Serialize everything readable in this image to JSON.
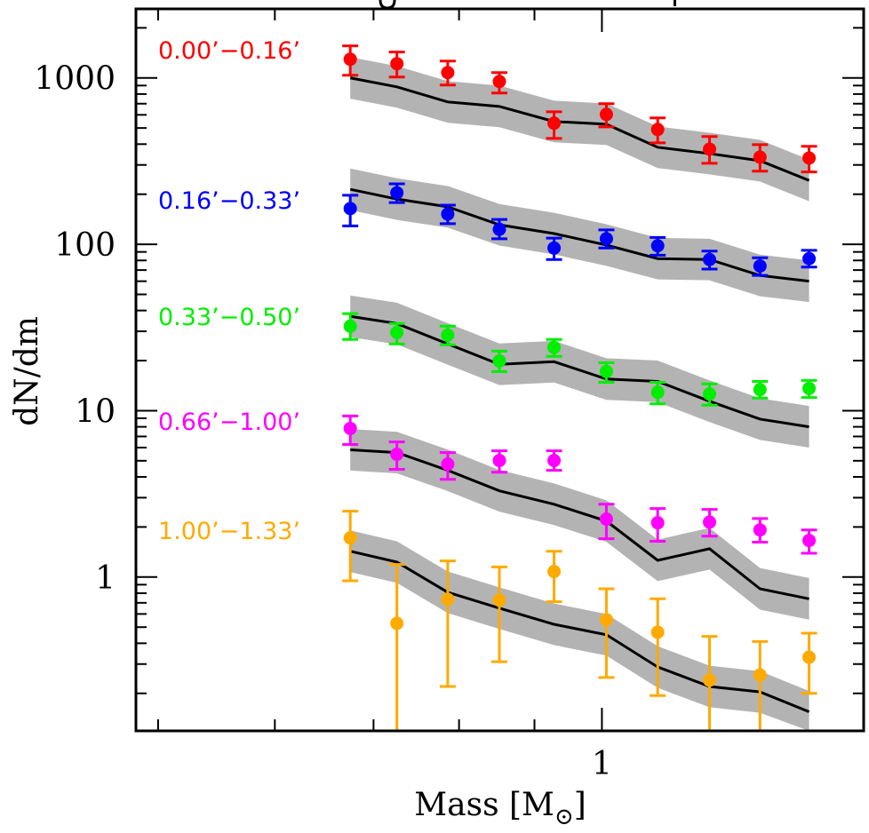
{
  "chart_data": {
    "type": "scatter",
    "title": "",
    "xlabel": "Mass [M",
    "xlabel_subscript": "⊙",
    "xlabel_close": "]",
    "ylabel": "dN/dm",
    "xscale": "log",
    "yscale": "log",
    "xlim": [
      0.483,
      1.505
    ],
    "ylim": [
      0.119,
      2600
    ],
    "x_major_ticks": [
      {
        "value": 1,
        "label": "1"
      }
    ],
    "x_minor_ticks": [
      0.5,
      0.6,
      0.7,
      0.8,
      0.9
    ],
    "y_major_ticks": [
      {
        "value": 1000,
        "label": "1000"
      },
      {
        "value": 100,
        "label": "100"
      },
      {
        "value": 10,
        "label": "10"
      },
      {
        "value": 1,
        "label": "1"
      }
    ],
    "grid": false,
    "legend": "inline-left",
    "x": [
      0.675,
      0.726,
      0.786,
      0.852,
      0.928,
      1.007,
      1.091,
      1.183,
      1.28,
      1.382
    ],
    "series": [
      {
        "name": "0.00’−0.16’",
        "color": "#ff0000",
        "values": [
          1295,
          1218,
          1077,
          952,
          534,
          604,
          490,
          373,
          334,
          330
        ],
        "err_high": [
          1560,
          1430,
          1263,
          1077,
          626,
          700,
          575,
          444,
          397,
          388
        ],
        "err_low": [
          1037,
          1012,
          906,
          811,
          433,
          508,
          407,
          307,
          275,
          272
        ],
        "model": [
          1000,
          884,
          717,
          674,
          547,
          527,
          383,
          351,
          318,
          242
        ]
      },
      {
        "name": "0.16’−0.33’",
        "color": "#0000ff",
        "values": [
          164,
          204,
          152,
          123,
          95,
          108,
          98,
          81,
          74,
          82
        ],
        "err_high": [
          197,
          231,
          172,
          141,
          109,
          122,
          110,
          91,
          83,
          92
        ],
        "err_low": [
          129,
          178,
          133,
          108,
          81,
          95,
          86,
          71,
          65,
          73
        ],
        "model": [
          214,
          187,
          168,
          131,
          116,
          99,
          82,
          81,
          65,
          60
        ]
      },
      {
        "name": "0.33’−0.50’",
        "color": "#00ee00",
        "values": [
          32.2,
          29.5,
          28.5,
          19.9,
          24.0,
          17.2,
          12.9,
          12.6,
          13.4,
          13.6
        ],
        "err_high": [
          38.3,
          33.4,
          32.2,
          22.8,
          26.8,
          19.4,
          14.8,
          14.5,
          15.0,
          15.2
        ],
        "err_low": [
          26.8,
          25.2,
          24.9,
          17.2,
          21.2,
          14.8,
          11.0,
          10.8,
          11.9,
          12.0
        ],
        "model": [
          36.9,
          33.4,
          25.2,
          19.0,
          19.7,
          15.5,
          15.0,
          11.4,
          8.9,
          8.0
        ]
      },
      {
        "name": "0.66’−1.00’",
        "color": "#ff00ff",
        "values": [
          7.82,
          5.47,
          4.77,
          5.02,
          5.02,
          2.23,
          2.12,
          2.14,
          1.92,
          1.66
        ],
        "err_high": [
          9.3,
          6.49,
          5.6,
          5.74,
          5.74,
          2.74,
          2.58,
          2.55,
          2.25,
          1.92
        ],
        "err_low": [
          6.26,
          4.44,
          3.87,
          4.27,
          4.38,
          1.7,
          1.64,
          1.76,
          1.62,
          1.39
        ],
        "model": [
          5.82,
          5.6,
          4.38,
          3.3,
          2.74,
          2.17,
          1.26,
          1.48,
          0.85,
          0.74
        ]
      },
      {
        "name": "1.00’−1.33’",
        "color": "#ffaa00",
        "values": [
          1.72,
          0.527,
          0.735,
          0.726,
          1.08,
          0.554,
          0.466,
          0.24,
          0.258,
          0.33
        ],
        "err_high": [
          2.49,
          1.19,
          1.25,
          1.15,
          1.43,
          0.85,
          0.74,
          0.44,
          0.41,
          0.46
        ],
        "err_low": [
          0.95,
          0.05,
          0.22,
          0.31,
          0.71,
          0.249,
          0.194,
          0.05,
          0.05,
          0.2
        ],
        "model": [
          1.43,
          1.23,
          0.81,
          0.65,
          0.52,
          0.45,
          0.288,
          0.22,
          0.204,
          0.155
        ]
      }
    ],
    "model_band_dex": 0.125,
    "model_color": "#000000",
    "band_color": "#b3b3b3"
  }
}
